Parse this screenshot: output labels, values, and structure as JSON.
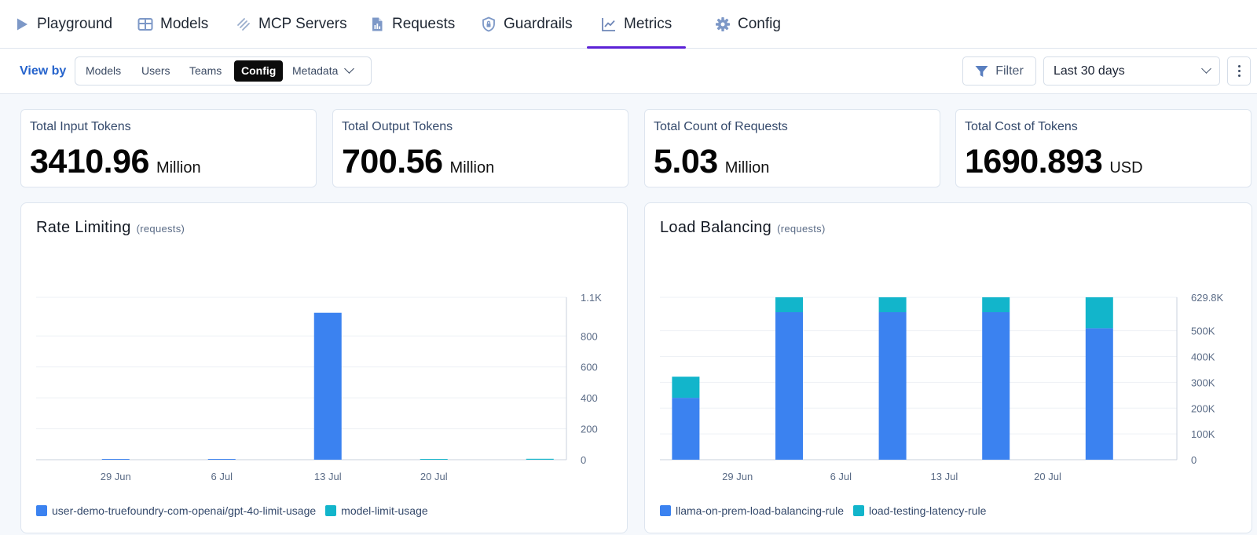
{
  "nav": {
    "tabs": [
      {
        "label": "Playground",
        "icon": "play-icon"
      },
      {
        "label": "Models",
        "icon": "table-icon"
      },
      {
        "label": "MCP Servers",
        "icon": "mcp-icon"
      },
      {
        "label": "Requests",
        "icon": "document-icon"
      },
      {
        "label": "Guardrails",
        "icon": "shield-icon"
      },
      {
        "label": "Metrics",
        "icon": "chart-line-icon",
        "active": true
      },
      {
        "label": "Config",
        "icon": "gear-icon"
      }
    ]
  },
  "toolbar": {
    "view_by_label": "View by",
    "view_options": [
      "Models",
      "Users",
      "Teams",
      "Config",
      "Metadata"
    ],
    "selected_view": "Config",
    "filter_label": "Filter",
    "time_range": "Last 30 days"
  },
  "stats": [
    {
      "label": "Total Input Tokens",
      "value": "3410.96",
      "unit": "Million"
    },
    {
      "label": "Total Output Tokens",
      "value": "700.56",
      "unit": "Million"
    },
    {
      "label": "Total Count of Requests",
      "value": "5.03",
      "unit": "Million"
    },
    {
      "label": "Total Cost of Tokens",
      "value": "1690.893",
      "unit": "USD"
    }
  ],
  "colors": {
    "accent": "#5b21d6",
    "link": "#2563cc",
    "series_blue": "#3b82f0",
    "series_cyan": "#12b5cb"
  },
  "chart_data": [
    {
      "type": "bar",
      "title": "Rate Limiting",
      "subtitle": "(requests)",
      "x_tick_labels": [
        "29 Jun",
        "6 Jul",
        "13 Jul",
        "20 Jul"
      ],
      "x_tick_positions": [
        1.5,
        3.5,
        5.5,
        7.5
      ],
      "y_ticks": [
        0,
        200,
        400,
        600,
        800
      ],
      "y_ticks_labels": [
        "0",
        "200",
        "400",
        "600",
        "800",
        "1.1K"
      ],
      "ylim": [
        0,
        1050
      ],
      "stacked": true,
      "categories": [
        0,
        1,
        2,
        3,
        4,
        5,
        6,
        7,
        8,
        9
      ],
      "series": [
        {
          "name": "user-demo-truefoundry-com-openai/gpt-4o-limit-usage",
          "color": "#3b82f0",
          "values": [
            0,
            4,
            0,
            4,
            0,
            950,
            0,
            0,
            0,
            0
          ]
        },
        {
          "name": "model-limit-usage",
          "color": "#12b5cb",
          "values": [
            0,
            0,
            0,
            0,
            0,
            0,
            0,
            4,
            0,
            6
          ]
        }
      ],
      "legend": "bottom-left",
      "grid": true
    },
    {
      "type": "bar",
      "title": "Load Balancing",
      "subtitle": "(requests)",
      "x_tick_labels": [
        "29 Jun",
        "6 Jul",
        "13 Jul",
        "20 Jul"
      ],
      "x_tick_positions": [
        1.5,
        3.5,
        5.5,
        7.5
      ],
      "y_ticks": [
        0,
        100000,
        200000,
        300000,
        400000,
        500000
      ],
      "y_ticks_labels": [
        "0",
        "100K",
        "200K",
        "300K",
        "400K",
        "500K",
        "629.8K"
      ],
      "ylim": [
        0,
        629800
      ],
      "stacked": true,
      "categories": [
        0,
        1,
        2,
        3,
        4,
        5,
        6,
        7,
        8,
        9
      ],
      "series": [
        {
          "name": "llama-on-prem-load-balancing-rule",
          "color": "#3b82f0",
          "values": [
            240000,
            0,
            572000,
            0,
            572000,
            0,
            572000,
            0,
            510000,
            0
          ]
        },
        {
          "name": "load-testing-latency-rule",
          "color": "#12b5cb",
          "values": [
            82000,
            0,
            58000,
            0,
            58000,
            0,
            58000,
            0,
            120000,
            0
          ]
        }
      ],
      "legend": "bottom-left",
      "grid": true
    }
  ]
}
